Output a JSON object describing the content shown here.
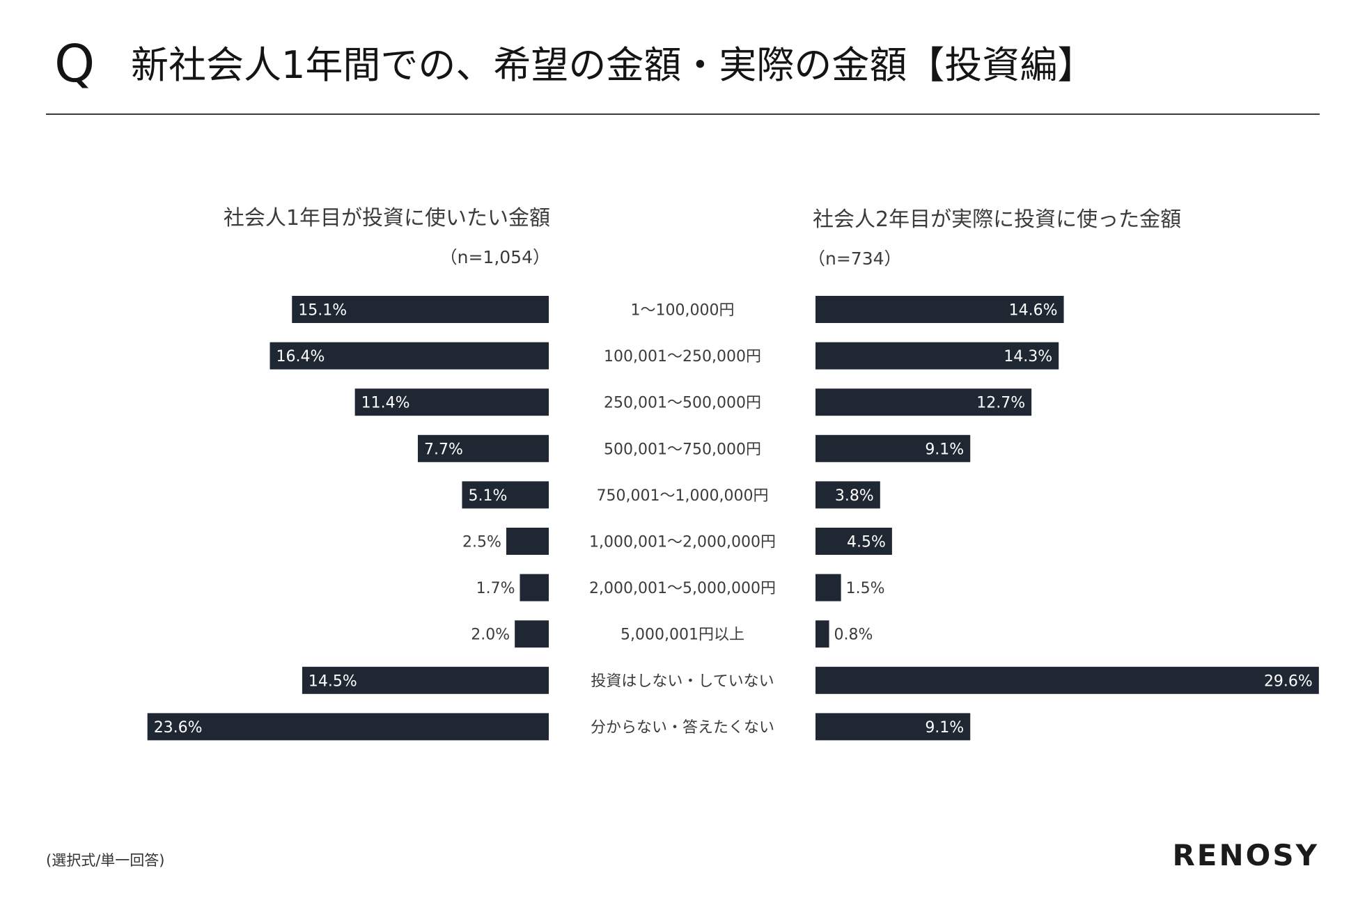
{
  "header": {
    "q_mark": "Q",
    "title": "新社会人1年間での、希望の金額・実際の金額【投資編】"
  },
  "chart_data": {
    "type": "bar",
    "categories": [
      "1〜100,000円",
      "100,001〜250,000円",
      "250,001〜500,000円",
      "500,001〜750,000円",
      "750,001〜1,000,000円",
      "1,000,001〜2,000,000円",
      "2,000,001〜5,000,000円",
      "5,000,001円以上",
      "投資はしない・していない",
      "分からない・答えたくない"
    ],
    "series": [
      {
        "name": "社会人1年目が投資に使いたい金額",
        "n_label": "（n=1,054）",
        "values": [
          15.1,
          16.4,
          11.4,
          7.7,
          5.1,
          2.5,
          1.7,
          2.0,
          14.5,
          23.6
        ],
        "labels": [
          "15.1%",
          "16.4%",
          "11.4%",
          "7.7%",
          "5.1%",
          "2.5%",
          "1.7%",
          "2.0%",
          "14.5%",
          "23.6%"
        ]
      },
      {
        "name": "社会人2年目が実際に投資に使った金額",
        "n_label": "（n=734）",
        "values": [
          14.6,
          14.3,
          12.7,
          9.1,
          3.8,
          4.5,
          1.5,
          0.8,
          29.6,
          9.1
        ],
        "labels": [
          "14.6%",
          "14.3%",
          "12.7%",
          "9.1%",
          "3.8%",
          "4.5%",
          "1.5%",
          "0.8%",
          "29.6%",
          "9.1%"
        ]
      }
    ],
    "bar_color": "#1f2733",
    "label_inside_color": "#ffffff",
    "label_outside_color": "#3b3b3b"
  },
  "footer": {
    "note": "(選択式/単一回答)",
    "logo": "RENOSY"
  }
}
